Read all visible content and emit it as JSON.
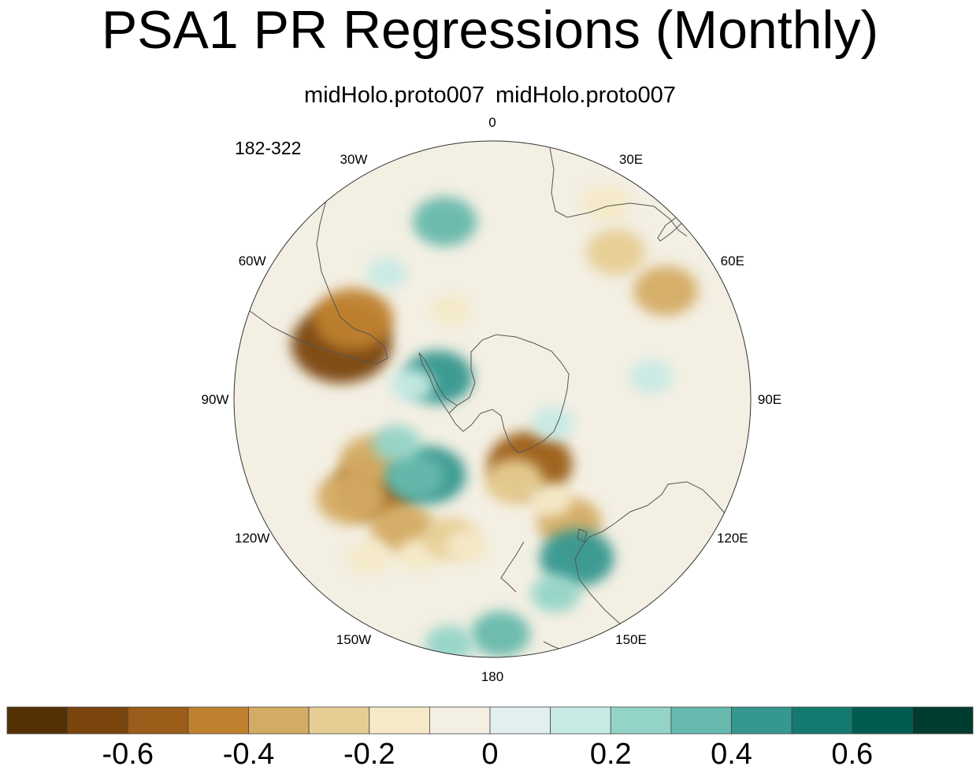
{
  "title": "PSA1 PR Regressions (Monthly)",
  "subtitle": "midHolo.proto007  midHolo.proto007",
  "period": "182-322",
  "colors": {
    "land_outline": "#555555",
    "map_background": "#f3efe3"
  },
  "chart_data": {
    "type": "heatmap",
    "projection": "south-polar-stereographic",
    "title": "PSA1 PR Regressions (Monthly)",
    "subtitle": "midHolo.proto007  midHolo.proto007",
    "period": "182-322",
    "longitude_labels": [
      {
        "lon": 0,
        "label": "0"
      },
      {
        "lon": 30,
        "label": "30E"
      },
      {
        "lon": 60,
        "label": "60E"
      },
      {
        "lon": 90,
        "label": "90E"
      },
      {
        "lon": 120,
        "label": "120E"
      },
      {
        "lon": 150,
        "label": "150E"
      },
      {
        "lon": 180,
        "label": "180"
      },
      {
        "lon": -150,
        "label": "150W"
      },
      {
        "lon": -120,
        "label": "120W"
      },
      {
        "lon": -90,
        "label": "90W"
      },
      {
        "lon": -60,
        "label": "60W"
      },
      {
        "lon": -30,
        "label": "30W"
      }
    ],
    "colorbar": {
      "levels": [
        -0.7,
        -0.6,
        -0.5,
        -0.4,
        -0.3,
        -0.2,
        -0.1,
        0,
        0.1,
        0.2,
        0.3,
        0.4,
        0.5,
        0.6,
        0.7
      ],
      "colors": [
        "#543005",
        "#7a440d",
        "#9b5d19",
        "#bf812d",
        "#d4ab64",
        "#e6cd93",
        "#f5e9c7",
        "#f3efe3",
        "#e1efee",
        "#c7eae4",
        "#94d4c8",
        "#66b9ac",
        "#35978f",
        "#147a70",
        "#015c50",
        "#003c30"
      ],
      "tick_labels": [
        {
          "value": -0.6,
          "label": "-0.6"
        },
        {
          "value": -0.4,
          "label": "-0.4"
        },
        {
          "value": -0.2,
          "label": "-0.2"
        },
        {
          "value": 0,
          "label": "0"
        },
        {
          "value": 0.2,
          "label": "0.2"
        },
        {
          "value": 0.4,
          "label": "0.4"
        },
        {
          "value": 0.6,
          "label": "0.6"
        }
      ],
      "units": ""
    },
    "anomalies": [
      {
        "lat": -43,
        "lon": -70,
        "value": -0.7
      },
      {
        "lat": -43,
        "lon": -60,
        "value": -0.5
      },
      {
        "lat": -47,
        "lon": -127,
        "value": -0.55
      },
      {
        "lat": -40,
        "lon": -125,
        "value": -0.4
      },
      {
        "lat": -50,
        "lon": -117,
        "value": -0.35
      },
      {
        "lat": -44,
        "lon": -145,
        "value": -0.35
      },
      {
        "lat": -40,
        "lon": -155,
        "value": -0.15
      },
      {
        "lat": -47,
        "lon": -163,
        "value": -0.25
      },
      {
        "lat": -33,
        "lon": -142,
        "value": -0.15
      },
      {
        "lat": -67,
        "lon": 150,
        "value": -0.55
      },
      {
        "lat": -64,
        "lon": 165,
        "value": -0.3
      },
      {
        "lat": -47,
        "lon": 148,
        "value": -0.35
      },
      {
        "lat": -55,
        "lon": 150,
        "value": -0.15
      },
      {
        "lat": -35,
        "lon": 40,
        "value": -0.3
      },
      {
        "lat": -32,
        "lon": 58,
        "value": -0.35
      },
      {
        "lat": -27,
        "lon": 30,
        "value": -0.2
      },
      {
        "lat": -46,
        "lon": -170,
        "value": -0.15
      },
      {
        "lat": -60,
        "lon": -25,
        "value": -0.12
      },
      {
        "lat": -60,
        "lon": -140,
        "value": 0.45
      },
      {
        "lat": -57,
        "lon": -135,
        "value": 0.3
      },
      {
        "lat": -58,
        "lon": -115,
        "value": 0.2
      },
      {
        "lat": -37,
        "lon": -15,
        "value": 0.35
      },
      {
        "lat": -42,
        "lon": -40,
        "value": 0.12
      },
      {
        "lat": -38,
        "lon": 152,
        "value": 0.45
      },
      {
        "lat": -32,
        "lon": 162,
        "value": 0.2
      },
      {
        "lat": -25,
        "lon": 178,
        "value": 0.3
      },
      {
        "lat": -22,
        "lon": -170,
        "value": 0.2
      },
      {
        "lat": -43,
        "lon": 82,
        "value": 0.15
      },
      {
        "lat": -72,
        "lon": -68,
        "value": 0.4
      },
      {
        "lat": -65,
        "lon": -80,
        "value": 0.15
      },
      {
        "lat": -70,
        "lon": 112,
        "value": 0.15
      }
    ]
  }
}
